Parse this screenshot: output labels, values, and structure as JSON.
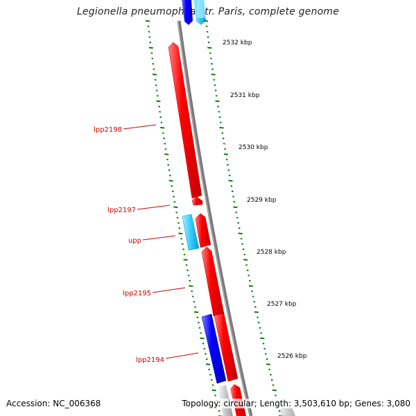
{
  "title": "Legionella pneumophila str. Paris, complete genome",
  "accession": "Accession: NC_006368",
  "topology": "Topology: circular; Length: 3,503,610 bp; Genes: 3,080",
  "colors": {
    "backbone": "#808080",
    "forward_gene": "#ff0000",
    "reverse_gene": "#0000ff",
    "cyan_gene": "#33ccff",
    "label": "#cc0000",
    "tick": "#006600"
  },
  "kbp_ticks": [
    {
      "label": "2532 kbp"
    },
    {
      "label": "2531 kbp"
    },
    {
      "label": "2530 kbp"
    },
    {
      "label": "2529 kbp"
    },
    {
      "label": "2528 kbp"
    },
    {
      "label": "2527 kbp"
    },
    {
      "label": "2526 kbp"
    }
  ],
  "gene_labels": [
    {
      "name": "lpp2198"
    },
    {
      "name": "lpp2197"
    },
    {
      "name": "upp"
    },
    {
      "name": "lpp2195"
    },
    {
      "name": "lpp2194"
    }
  ]
}
